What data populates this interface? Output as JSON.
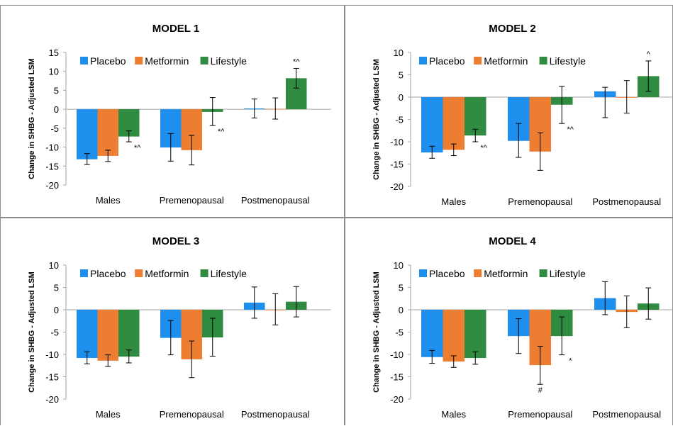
{
  "colors": {
    "placebo": "#1f8fee",
    "metformin": "#ed7d31",
    "lifestyle": "#2e8b3f",
    "axis": "#a6a6a6",
    "error": "#000000"
  },
  "chart_data": [
    {
      "type": "bar",
      "title": "MODEL 1",
      "ylabel": "Change in SHBG - Adjusted LSM",
      "categories": [
        "Males",
        "Premenopausal",
        "Postmenopausal"
      ],
      "ylim": [
        -20,
        15
      ],
      "yticks": [
        15,
        10,
        5,
        0,
        -5,
        -10,
        -15,
        -20
      ],
      "legend": "top",
      "series": [
        {
          "name": "Placebo",
          "values": [
            -13.2,
            -10.1,
            0.2
          ],
          "err_low": [
            -14.6,
            -13.7,
            -2.3
          ],
          "err_high": [
            -11.7,
            -6.4,
            2.7
          ]
        },
        {
          "name": "Metformin",
          "values": [
            -12.3,
            -10.8,
            0.1
          ],
          "err_low": [
            -13.8,
            -14.7,
            -2.6
          ],
          "err_high": [
            -10.8,
            -6.9,
            3.0
          ]
        },
        {
          "name": "Lifestyle",
          "values": [
            -7.2,
            -0.7,
            8.2
          ],
          "err_low": [
            -8.6,
            -4.3,
            5.6
          ],
          "err_high": [
            -5.7,
            3.1,
            10.8
          ]
        }
      ],
      "annotations": [
        {
          "category": 0,
          "series": 2,
          "text": "*^",
          "anchor": "below"
        },
        {
          "category": 1,
          "series": 2,
          "text": "*^",
          "anchor": "below"
        },
        {
          "category": 2,
          "series": 2,
          "text": "*^",
          "anchor": "above"
        }
      ]
    },
    {
      "type": "bar",
      "title": "MODEL 2",
      "ylabel": "Change in SHBG - Adjusted LSM",
      "categories": [
        "Males",
        "Premenopausal",
        "Postmenopausal"
      ],
      "ylim": [
        -20,
        10
      ],
      "yticks": [
        10,
        5,
        0,
        -5,
        -10,
        -15,
        -20
      ],
      "legend": "top",
      "series": [
        {
          "name": "Placebo",
          "values": [
            -12.4,
            -9.8,
            1.3
          ],
          "err_low": [
            -13.7,
            -13.5,
            -4.6
          ],
          "err_high": [
            -11.0,
            -5.9,
            2.2
          ]
        },
        {
          "name": "Metformin",
          "values": [
            -11.8,
            -12.2,
            0.0
          ],
          "err_low": [
            -13.1,
            -16.4,
            -3.6
          ],
          "err_high": [
            -10.5,
            -8.0,
            3.7
          ]
        },
        {
          "name": "Lifestyle",
          "values": [
            -8.6,
            -1.7,
            4.7
          ],
          "err_low": [
            -10.0,
            -5.9,
            1.3
          ],
          "err_high": [
            -7.2,
            2.4,
            8.1
          ]
        }
      ],
      "annotations": [
        {
          "category": 0,
          "series": 2,
          "text": "*^",
          "anchor": "below"
        },
        {
          "category": 1,
          "series": 2,
          "text": "*^",
          "anchor": "below"
        },
        {
          "category": 2,
          "series": 2,
          "text": "^",
          "anchor": "above"
        }
      ]
    },
    {
      "type": "bar",
      "title": "MODEL 3",
      "ylabel": "Change in SHBG - Adjusted LSM",
      "categories": [
        "Males",
        "Premenopausal",
        "Postmenopausal"
      ],
      "ylim": [
        -20,
        10
      ],
      "yticks": [
        10,
        5,
        0,
        -5,
        -10,
        -15,
        -20
      ],
      "legend": "top",
      "series": [
        {
          "name": "Placebo",
          "values": [
            -10.8,
            -6.3,
            1.6
          ],
          "err_low": [
            -12.1,
            -10.1,
            -1.9
          ],
          "err_high": [
            -9.4,
            -2.4,
            5.1
          ]
        },
        {
          "name": "Metformin",
          "values": [
            -11.4,
            -11.1,
            0.0
          ],
          "err_low": [
            -12.7,
            -15.2,
            -3.4
          ],
          "err_high": [
            -10.1,
            -7.0,
            3.6
          ]
        },
        {
          "name": "Lifestyle",
          "values": [
            -10.5,
            -6.2,
            1.8
          ],
          "err_low": [
            -11.9,
            -10.4,
            -1.6
          ],
          "err_high": [
            -9.0,
            -1.9,
            5.2
          ]
        }
      ],
      "annotations": []
    },
    {
      "type": "bar",
      "title": "MODEL 4",
      "ylabel": "Change in SHBG - Adjusted LSM",
      "categories": [
        "Males",
        "Premenopausal",
        "Postmenopausal"
      ],
      "ylim": [
        -20,
        10
      ],
      "yticks": [
        10,
        5,
        0,
        -5,
        -10,
        -15,
        -20
      ],
      "legend": "top",
      "series": [
        {
          "name": "Placebo",
          "values": [
            -10.6,
            -5.9,
            2.6
          ],
          "err_low": [
            -12.0,
            -9.8,
            -1.1
          ],
          "err_high": [
            -9.1,
            -2.0,
            6.3
          ]
        },
        {
          "name": "Metformin",
          "values": [
            -11.6,
            -12.4,
            -0.5
          ],
          "err_low": [
            -12.9,
            -16.7,
            -4.0
          ],
          "err_high": [
            -10.3,
            -8.2,
            3.1
          ]
        },
        {
          "name": "Lifestyle",
          "values": [
            -10.8,
            -5.9,
            1.4
          ],
          "err_low": [
            -12.2,
            -10.1,
            -2.1
          ],
          "err_high": [
            -9.4,
            -1.6,
            4.9
          ]
        }
      ],
      "annotations": [
        {
          "category": 1,
          "series": 1,
          "text": "#",
          "anchor": "below"
        },
        {
          "category": 1,
          "series": 2,
          "text": "*",
          "anchor": "below"
        }
      ]
    }
  ]
}
